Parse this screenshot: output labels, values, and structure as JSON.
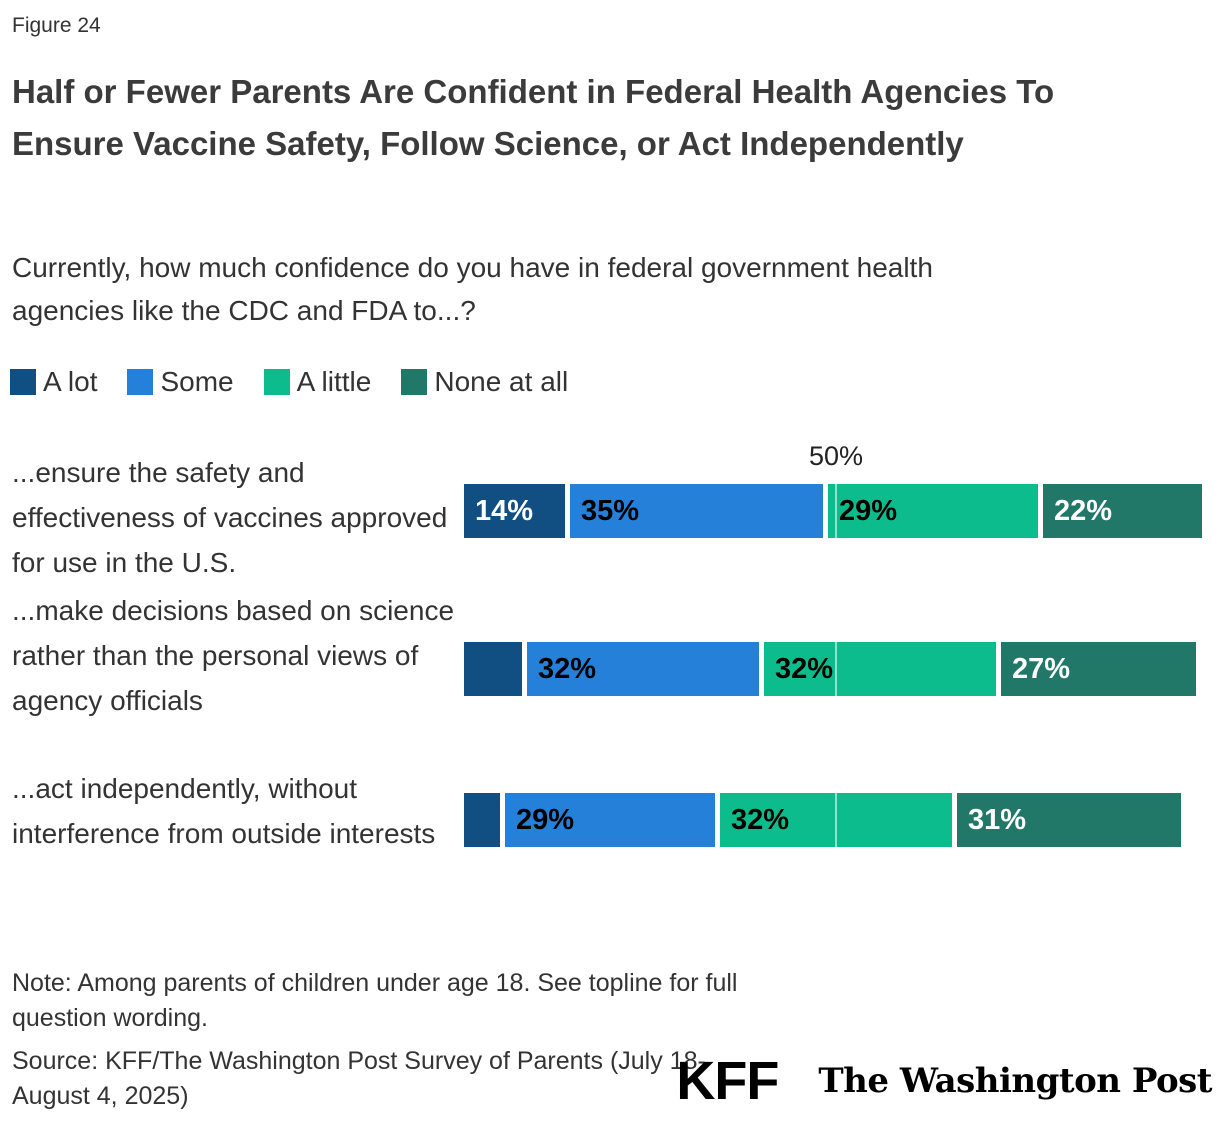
{
  "figure_label": "Figure 24",
  "title": "Half or Fewer Parents Are Confident in Federal Health Agencies To Ensure Vaccine Safety, Follow Science, or Act Independently",
  "subtitle": "Currently, how much confidence do you have in federal government health agencies like the CDC and FDA to...?",
  "legend": [
    {
      "label": "A lot",
      "color": "#114e82"
    },
    {
      "label": "Some",
      "color": "#2480d9"
    },
    {
      "label": "A little",
      "color": "#0cbc8c"
    },
    {
      "label": "None at all",
      "color": "#217869"
    }
  ],
  "chart_data": {
    "type": "bar",
    "orientation": "horizontal-stacked",
    "xlim": [
      0,
      100
    ],
    "axis_top_label": "50%",
    "axis_marker_percent": 50,
    "grid": "single 50% marker line over bars",
    "legend_position": "top-left",
    "categories": [
      "...ensure the safety and effectiveness of vaccines approved for use in the U.S.",
      "...make decisions based on science rather than the personal views of agency officials",
      "...act independently, without interference from outside interests"
    ],
    "series": [
      {
        "name": "A lot",
        "color": "#114e82",
        "text_color": "#ffffff",
        "values": [
          14,
          8,
          5
        ],
        "labels": [
          "14%",
          "",
          ""
        ]
      },
      {
        "name": "Some",
        "color": "#2480d9",
        "text_color": "#000000",
        "values": [
          35,
          32,
          29
        ],
        "labels": [
          "35%",
          "32%",
          "29%"
        ]
      },
      {
        "name": "A little",
        "color": "#0cbc8c",
        "text_color": "#000000",
        "values": [
          29,
          32,
          32
        ],
        "labels": [
          "29%",
          "32%",
          "32%"
        ]
      },
      {
        "name": "None at all",
        "color": "#217869",
        "text_color": "#ffffff",
        "values": [
          22,
          27,
          31
        ],
        "labels": [
          "22%",
          "27%",
          "31%"
        ]
      }
    ]
  },
  "note": "Note: Among parents of children under age 18. See topline for full question wording.",
  "source": "Source: KFF/The Washington Post Survey of Parents (July 18-August 4, 2025)",
  "logos": {
    "kff": "KFF",
    "wapo": "The Washington Post"
  }
}
